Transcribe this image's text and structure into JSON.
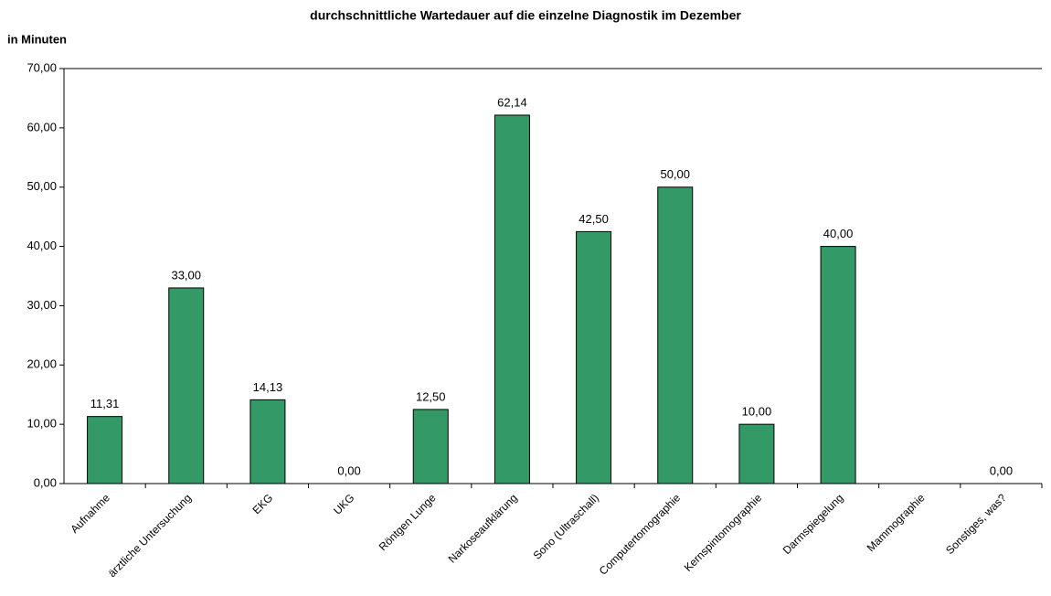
{
  "chart_data": {
    "type": "bar",
    "title": "durchschnittliche Wartedauer auf die einzelne Diagnostik im Dezember",
    "y_label": "in Minuten",
    "categories": [
      "Aufnahme",
      "ärztliche Untersuchung",
      "EKG",
      "UKG",
      "Röntgen Lunge",
      "Narkoseaufklärung",
      "Sono (Ultraschall)",
      "Computertomographie",
      "Kernspintomographie",
      "Darmspiegelung",
      "Mammographie",
      "Sonstiges, was?"
    ],
    "values": [
      11.31,
      33.0,
      14.13,
      0.0,
      12.5,
      62.14,
      42.5,
      50.0,
      10.0,
      40.0,
      0,
      0.0
    ],
    "value_labels": [
      "11,31",
      "33,00",
      "14,13",
      "0,00",
      "12,50",
      "62,14",
      "42,50",
      "50,00",
      "10,00",
      "40,00",
      null,
      "0,00"
    ],
    "color": "#339966",
    "ylim": [
      0,
      70
    ],
    "yticks": [
      {
        "value": 0,
        "label": "0,00"
      },
      {
        "value": 10,
        "label": "10,00"
      },
      {
        "value": 20,
        "label": "20,00"
      },
      {
        "value": 30,
        "label": "30,00"
      },
      {
        "value": 40,
        "label": "40,00"
      },
      {
        "value": 50,
        "label": "50,00"
      },
      {
        "value": 60,
        "label": "60,00"
      },
      {
        "value": 70,
        "label": "70,00"
      }
    ]
  }
}
